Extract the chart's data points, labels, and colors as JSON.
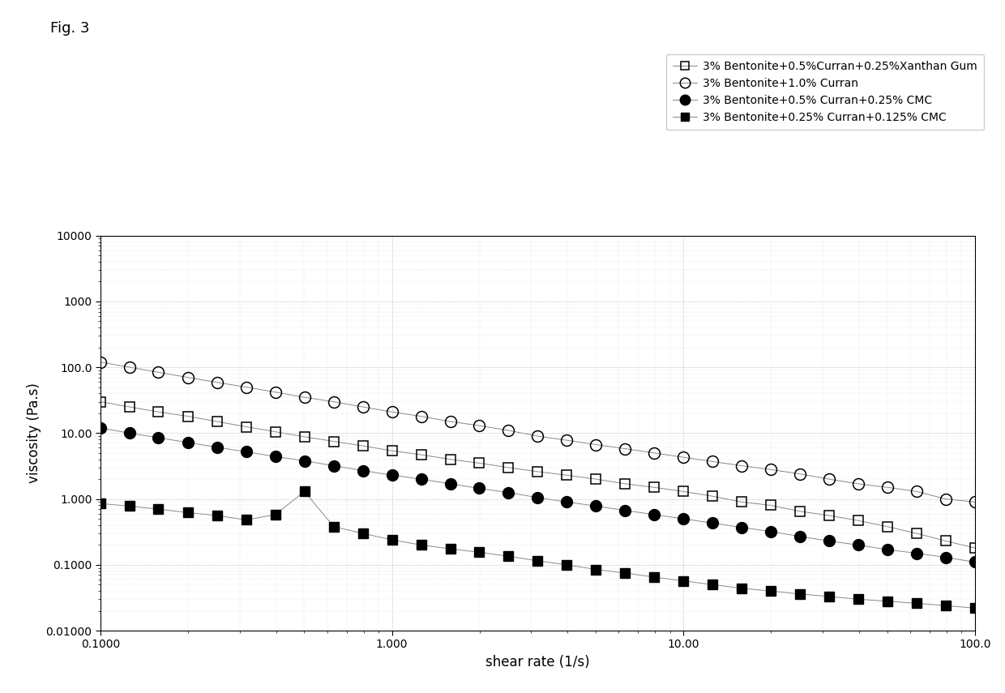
{
  "title_fig": "Fig. 3",
  "xlabel": "shear rate (1/s)",
  "ylabel": "viscosity (Pa.s)",
  "xlim": [
    0.1,
    100.0
  ],
  "ylim": [
    0.01,
    10000
  ],
  "series": [
    {
      "label": "3% Bentonite+0.5%Curran+0.25%Xanthan Gum",
      "marker": "s",
      "fillstyle": "none",
      "color": "#000000",
      "markersize": 8,
      "linewidth": 0.7,
      "x": [
        0.1,
        0.126,
        0.158,
        0.2,
        0.251,
        0.316,
        0.398,
        0.501,
        0.631,
        0.794,
        1.0,
        1.259,
        1.585,
        1.995,
        2.512,
        3.162,
        3.981,
        5.012,
        6.31,
        7.943,
        10.0,
        12.59,
        15.85,
        19.95,
        25.12,
        31.62,
        39.81,
        50.12,
        63.1,
        79.43,
        100.0
      ],
      "y": [
        30.0,
        25.0,
        21.0,
        18.0,
        15.0,
        12.5,
        10.5,
        8.8,
        7.5,
        6.4,
        5.4,
        4.7,
        4.0,
        3.5,
        3.0,
        2.6,
        2.3,
        2.0,
        1.7,
        1.5,
        1.3,
        1.1,
        0.9,
        0.8,
        0.65,
        0.56,
        0.47,
        0.38,
        0.3,
        0.23,
        0.18
      ]
    },
    {
      "label": "3% Bentonite+1.0% Curran",
      "marker": "o",
      "fillstyle": "none",
      "color": "#000000",
      "markersize": 10,
      "linewidth": 0.7,
      "x": [
        0.1,
        0.126,
        0.158,
        0.2,
        0.251,
        0.316,
        0.398,
        0.501,
        0.631,
        0.794,
        1.0,
        1.259,
        1.585,
        1.995,
        2.512,
        3.162,
        3.981,
        5.012,
        6.31,
        7.943,
        10.0,
        12.59,
        15.85,
        19.95,
        25.12,
        31.62,
        39.81,
        50.12,
        63.1,
        79.43,
        100.0
      ],
      "y": [
        120.0,
        100.0,
        84.0,
        70.0,
        59.0,
        50.0,
        42.0,
        35.0,
        30.0,
        25.0,
        21.0,
        18.0,
        15.0,
        13.0,
        11.0,
        9.0,
        7.8,
        6.7,
        5.8,
        5.0,
        4.3,
        3.7,
        3.2,
        2.8,
        2.4,
        2.0,
        1.7,
        1.5,
        1.3,
        1.0,
        0.9
      ]
    },
    {
      "label": "3% Bentonite+0.5% Curran+0.25% CMC",
      "marker": "o",
      "fillstyle": "full",
      "color": "#000000",
      "markersize": 10,
      "linewidth": 0.7,
      "x": [
        0.1,
        0.126,
        0.158,
        0.2,
        0.251,
        0.316,
        0.398,
        0.501,
        0.631,
        0.794,
        1.0,
        1.259,
        1.585,
        1.995,
        2.512,
        3.162,
        3.981,
        5.012,
        6.31,
        7.943,
        10.0,
        12.59,
        15.85,
        19.95,
        25.12,
        31.62,
        39.81,
        50.12,
        63.1,
        79.43,
        100.0
      ],
      "y": [
        12.0,
        10.0,
        8.5,
        7.2,
        6.1,
        5.2,
        4.4,
        3.8,
        3.2,
        2.7,
        2.3,
        2.0,
        1.7,
        1.45,
        1.25,
        1.05,
        0.9,
        0.78,
        0.67,
        0.58,
        0.5,
        0.43,
        0.37,
        0.32,
        0.27,
        0.23,
        0.2,
        0.17,
        0.15,
        0.13,
        0.11
      ]
    },
    {
      "label": "3% Bentonite+0.25% Curran+0.125% CMC",
      "marker": "s",
      "fillstyle": "full",
      "color": "#000000",
      "markersize": 8,
      "linewidth": 0.7,
      "x": [
        0.1,
        0.126,
        0.158,
        0.2,
        0.251,
        0.316,
        0.398,
        0.501,
        0.631,
        0.794,
        1.0,
        1.259,
        1.585,
        1.995,
        2.512,
        3.162,
        3.981,
        5.012,
        6.31,
        7.943,
        10.0,
        12.59,
        15.85,
        19.95,
        25.12,
        31.62,
        39.81,
        50.12,
        63.1,
        79.43,
        100.0
      ],
      "y": [
        0.85,
        0.78,
        0.7,
        0.62,
        0.56,
        0.48,
        0.58,
        1.3,
        0.38,
        0.3,
        0.24,
        0.2,
        0.175,
        0.155,
        0.135,
        0.115,
        0.1,
        0.085,
        0.075,
        0.065,
        0.057,
        0.05,
        0.044,
        0.04,
        0.036,
        0.033,
        0.03,
        0.028,
        0.026,
        0.024,
        0.022
      ]
    }
  ],
  "background_color": "#ffffff",
  "grid_color": "#aaaaaa",
  "fig_label": "Fig. 3",
  "x_tick_positions": [
    0.1,
    1.0,
    10.0,
    100.0
  ],
  "x_tick_labels": [
    "0.1000",
    "1.000",
    "10.00",
    "100.0"
  ],
  "y_tick_positions": [
    0.01,
    0.1,
    1.0,
    10.0,
    100.0,
    1000.0,
    10000.0
  ],
  "y_tick_labels": [
    "0.01000",
    "0.1000",
    "1.000",
    "10.00",
    "100.0",
    "1000",
    "10000"
  ]
}
